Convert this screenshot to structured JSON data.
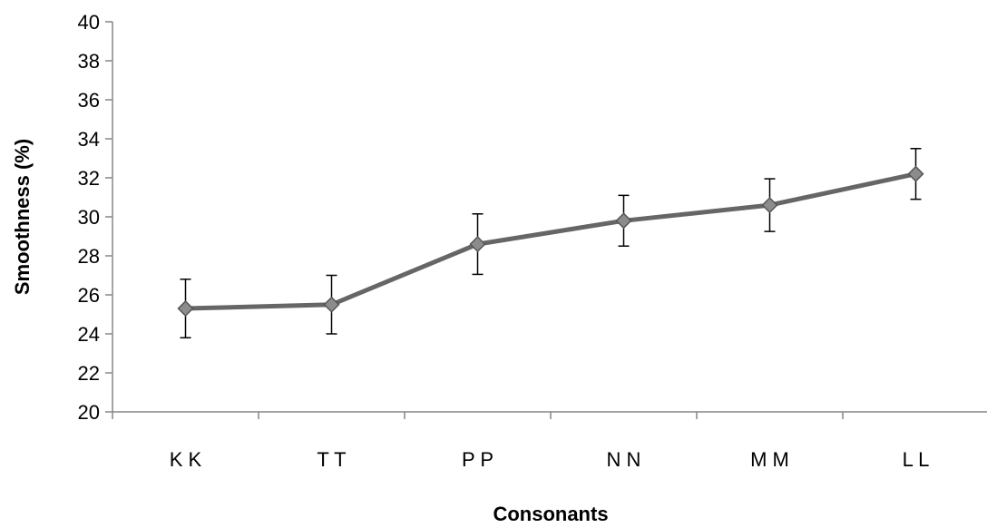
{
  "chart_data": {
    "type": "line",
    "title": "",
    "xlabel": "Consonants",
    "ylabel": "Smoothness (%)",
    "categories": [
      "K K",
      "T T",
      "P P",
      "N N",
      "M M",
      "L L"
    ],
    "series": [
      {
        "values": [
          25.3,
          25.5,
          28.6,
          29.8,
          30.6,
          32.2
        ],
        "errors": [
          1.5,
          1.5,
          1.55,
          1.3,
          1.35,
          1.3
        ],
        "color": "#666666",
        "marker": "diamond"
      }
    ],
    "ylim": [
      20,
      40
    ],
    "yticks": [
      20,
      22,
      24,
      26,
      28,
      30,
      32,
      34,
      36,
      38,
      40
    ],
    "grid": false,
    "legend": "none"
  }
}
